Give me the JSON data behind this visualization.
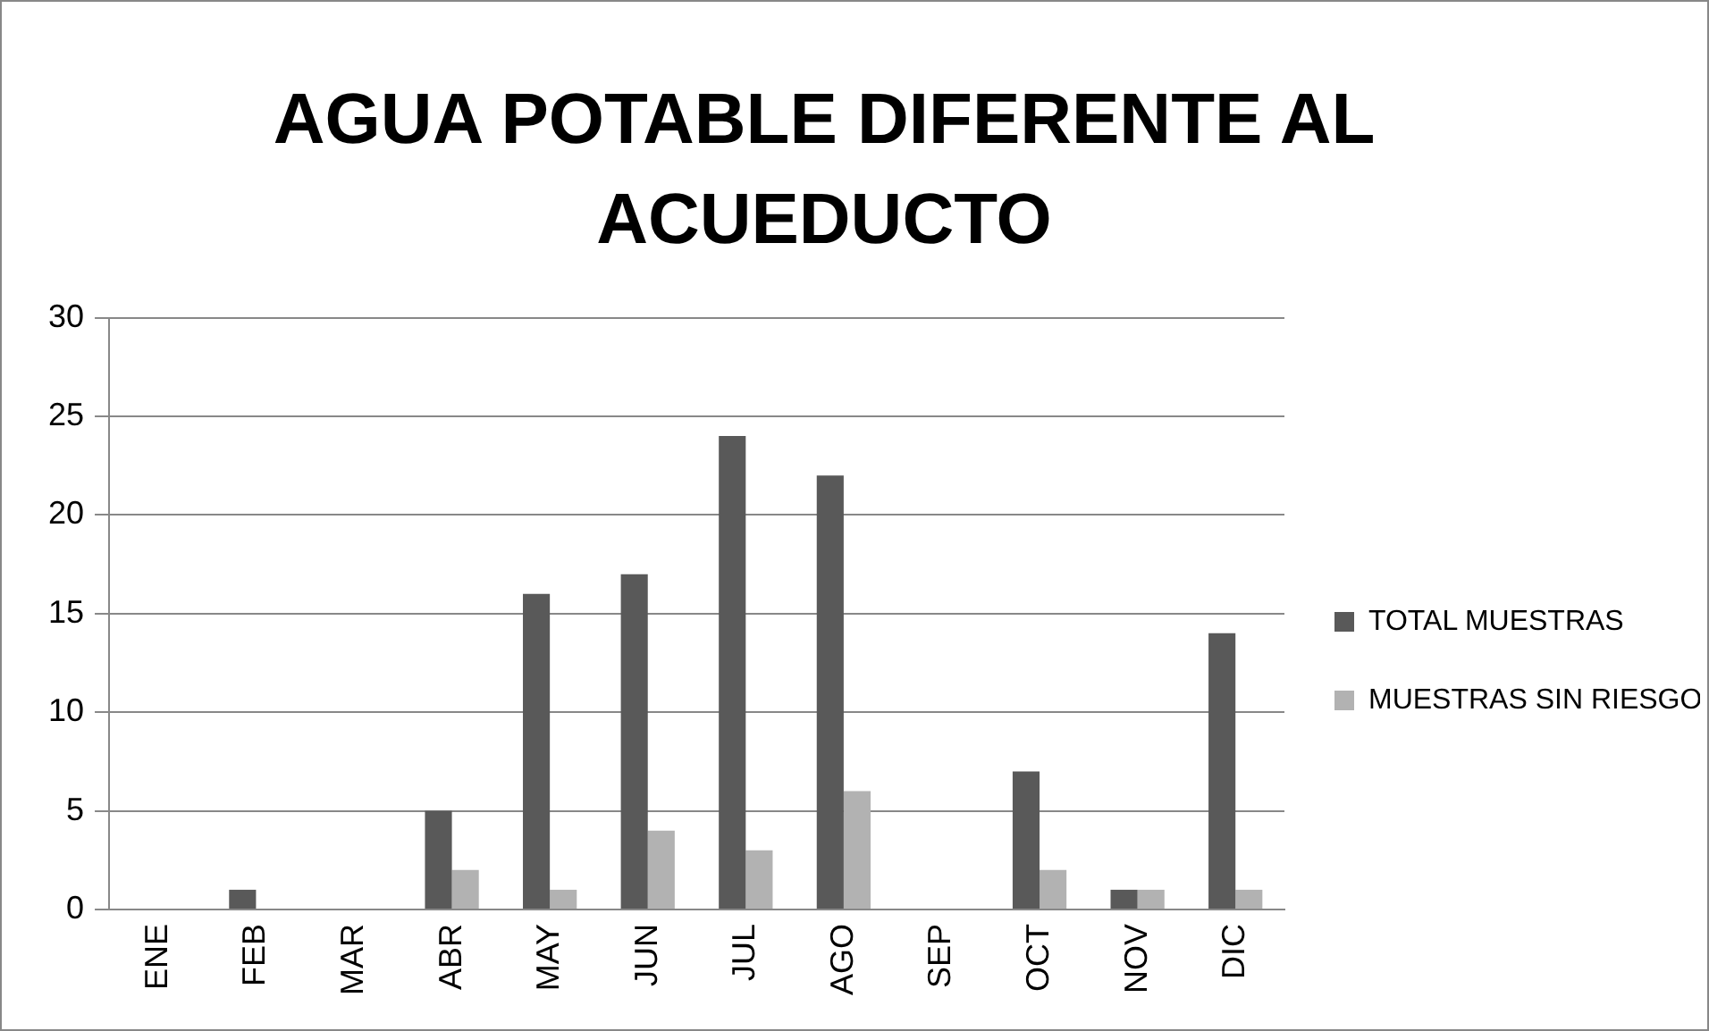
{
  "chart_data": {
    "type": "bar",
    "title": "AGUA POTABLE DIFERENTE AL ACUEDUCTO",
    "categories": [
      "ENE",
      "FEB",
      "MAR",
      "ABR",
      "MAY",
      "JUN",
      "JUL",
      "AGO",
      "SEP",
      "OCT",
      "NOV",
      "DIC"
    ],
    "series": [
      {
        "name": "TOTAL MUESTRAS",
        "color": "#595959",
        "values": [
          0,
          1,
          0,
          5,
          16,
          17,
          24,
          22,
          0,
          7,
          1,
          14
        ]
      },
      {
        "name": "MUESTRAS SIN RIESGO",
        "color": "#b2b2b2",
        "values": [
          0,
          0,
          0,
          2,
          1,
          4,
          3,
          6,
          0,
          2,
          1,
          1
        ]
      }
    ],
    "ylim": [
      0,
      30
    ],
    "yticks": [
      0,
      5,
      10,
      15,
      20,
      25,
      30
    ],
    "grid": "y",
    "legend": "right"
  }
}
